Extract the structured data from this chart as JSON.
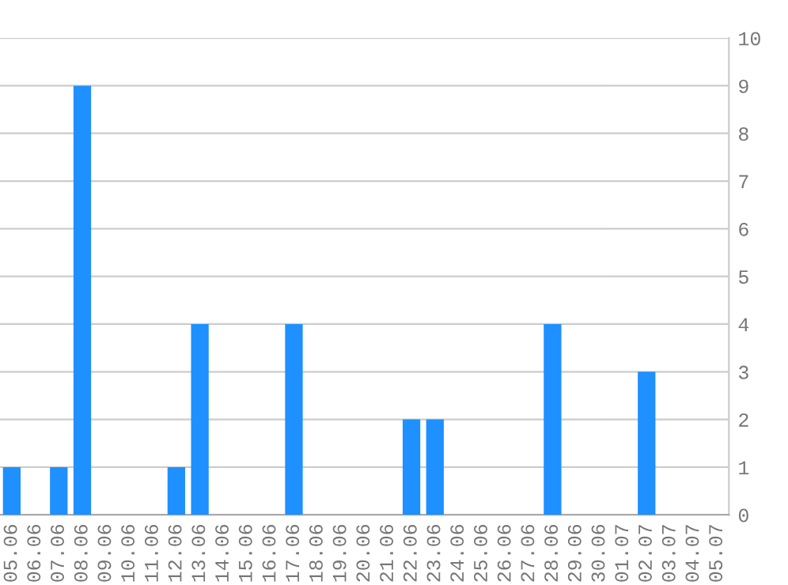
{
  "chart_data": {
    "type": "bar",
    "categories": [
      "05.06",
      "06.06",
      "07.06",
      "08.06",
      "09.06",
      "10.06",
      "11.06",
      "12.06",
      "13.06",
      "14.06",
      "15.06",
      "16.06",
      "17.06",
      "18.06",
      "19.06",
      "20.06",
      "21.06",
      "22.06",
      "23.06",
      "24.06",
      "25.06",
      "26.06",
      "27.06",
      "28.06",
      "29.06",
      "30.06",
      "01.07",
      "02.07",
      "03.07",
      "04.07",
      "05.07"
    ],
    "values": [
      1,
      0,
      1,
      9,
      0,
      0,
      0,
      1,
      4,
      0,
      0,
      0,
      4,
      0,
      0,
      0,
      0,
      2,
      2,
      0,
      0,
      0,
      0,
      4,
      0,
      0,
      0,
      3,
      0,
      0,
      0
    ],
    "color": "#1e90ff",
    "ylim": [
      0,
      10
    ],
    "yticks": [
      0,
      1,
      2,
      3,
      4,
      5,
      6,
      7,
      8,
      9,
      10
    ],
    "grid": "y"
  }
}
